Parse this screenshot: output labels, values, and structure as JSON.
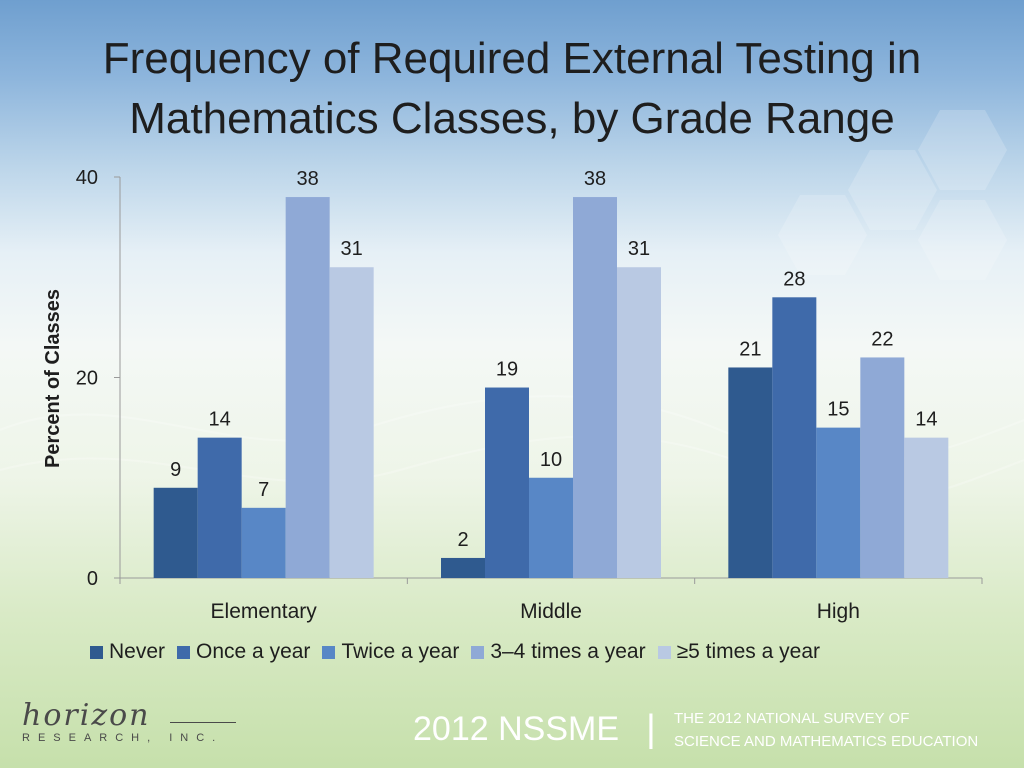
{
  "title": {
    "line1": "Frequency of Required External Testing in",
    "line2": "Mathematics Classes, by Grade Range"
  },
  "chart_data": {
    "type": "bar",
    "title": "Frequency of Required External Testing in Mathematics Classes, by Grade Range",
    "xlabel": "",
    "ylabel": "Percent of Classes",
    "ylim": [
      0,
      40
    ],
    "yticks": [
      0,
      20,
      40
    ],
    "categories": [
      "Elementary",
      "Middle",
      "High"
    ],
    "series": [
      {
        "name": "Never",
        "values": [
          9,
          2,
          21
        ],
        "color": "#2f5a8f"
      },
      {
        "name": "Once a year",
        "values": [
          14,
          19,
          28
        ],
        "color": "#3f6aaa"
      },
      {
        "name": "Twice a year",
        "values": [
          7,
          10,
          15
        ],
        "color": "#5887c6"
      },
      {
        "name": "3–4 times a year",
        "values": [
          38,
          38,
          22
        ],
        "color": "#8fa9d6"
      },
      {
        "name": "≥5 times a year",
        "values": [
          31,
          31,
          14
        ],
        "color": "#b9c9e3"
      }
    ],
    "grid": false,
    "legend_position": "bottom",
    "data_labels": true
  },
  "footer": {
    "logo_script": "horizon",
    "logo_sub": "RESEARCH, INC.",
    "nssme": "2012 NSSME",
    "separator": "|",
    "survey_line1": "THE 2012 NATIONAL SURVEY OF",
    "survey_line2": "SCIENCE AND MATHEMATICS EDUCATION"
  }
}
